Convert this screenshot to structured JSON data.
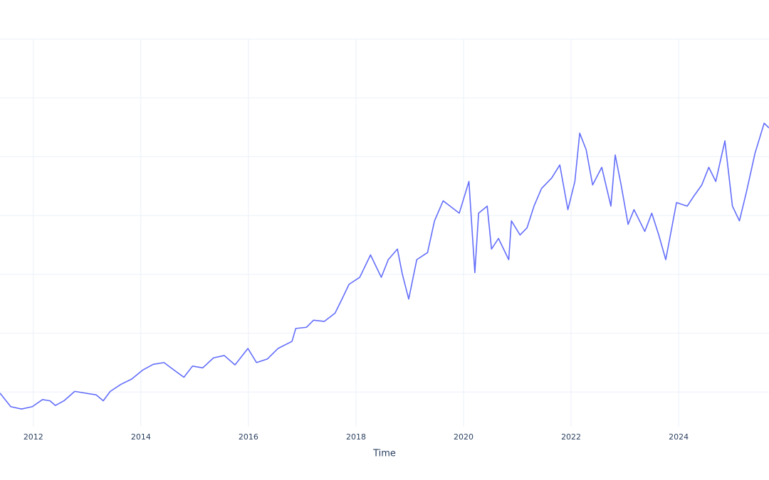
{
  "chart_data": {
    "type": "line",
    "x_title": "Time",
    "x": [
      2011.38,
      2011.58,
      2011.78,
      2011.98,
      2012.17,
      2012.31,
      2012.41,
      2012.57,
      2012.77,
      2012.97,
      2013.17,
      2013.3,
      2013.43,
      2013.63,
      2013.83,
      2014.03,
      2014.23,
      2014.43,
      2014.62,
      2014.8,
      2014.96,
      2015.15,
      2015.35,
      2015.55,
      2015.75,
      2015.99,
      2016.15,
      2016.35,
      2016.55,
      2016.81,
      2016.88,
      2017.08,
      2017.21,
      2017.41,
      2017.61,
      2017.74,
      2017.87,
      2018.07,
      2018.27,
      2018.47,
      2018.6,
      2018.77,
      2018.86,
      2018.98,
      2019.13,
      2019.33,
      2019.46,
      2019.62,
      2019.75,
      2019.92,
      2020.1,
      2020.21,
      2020.28,
      2020.44,
      2020.52,
      2020.65,
      2020.84,
      2020.89,
      2021.05,
      2021.18,
      2021.31,
      2021.45,
      2021.64,
      2021.79,
      2021.94,
      2022.07,
      2022.16,
      2022.28,
      2022.4,
      2022.57,
      2022.74,
      2022.82,
      2022.93,
      2023.06,
      2023.17,
      2023.37,
      2023.5,
      2023.63,
      2023.76,
      2023.96,
      2024.16,
      2024.29,
      2024.43,
      2024.56,
      2024.69,
      2024.86,
      2025.0,
      2025.13,
      2025.26,
      2025.42,
      2025.59,
      2025.68
    ],
    "series": [
      {
        "color": "#636efa",
        "values": [
          -0.02,
          -0.25,
          -0.29,
          -0.25,
          -0.13,
          -0.15,
          -0.23,
          -0.15,
          0.01,
          -0.02,
          -0.05,
          -0.15,
          0.01,
          0.13,
          0.22,
          0.37,
          0.47,
          0.5,
          0.37,
          0.25,
          0.44,
          0.41,
          0.58,
          0.62,
          0.46,
          0.74,
          0.5,
          0.56,
          0.74,
          0.86,
          1.08,
          1.1,
          1.22,
          1.2,
          1.34,
          1.58,
          1.83,
          1.95,
          2.33,
          1.95,
          2.25,
          2.43,
          2.01,
          1.58,
          2.25,
          2.37,
          2.91,
          3.25,
          3.16,
          3.04,
          3.58,
          2.03,
          3.04,
          3.16,
          2.43,
          2.61,
          2.25,
          2.91,
          2.67,
          2.79,
          3.16,
          3.46,
          3.64,
          3.86,
          3.1,
          3.58,
          4.4,
          4.12,
          3.52,
          3.82,
          3.16,
          4.03,
          3.52,
          2.85,
          3.1,
          2.73,
          3.04,
          2.67,
          2.25,
          3.22,
          3.16,
          3.34,
          3.52,
          3.82,
          3.58,
          4.27,
          3.16,
          2.91,
          3.4,
          4.06,
          4.57,
          4.49
        ]
      }
    ],
    "xlim": [
      2011.38,
      2025.68
    ],
    "xticks": [
      2012,
      2014,
      2016,
      2018,
      2020,
      2022,
      2024
    ],
    "ylim": [
      -0.59,
      6
    ],
    "ygrid": [
      0,
      1,
      2,
      3,
      4,
      5,
      6
    ],
    "grid": true
  }
}
